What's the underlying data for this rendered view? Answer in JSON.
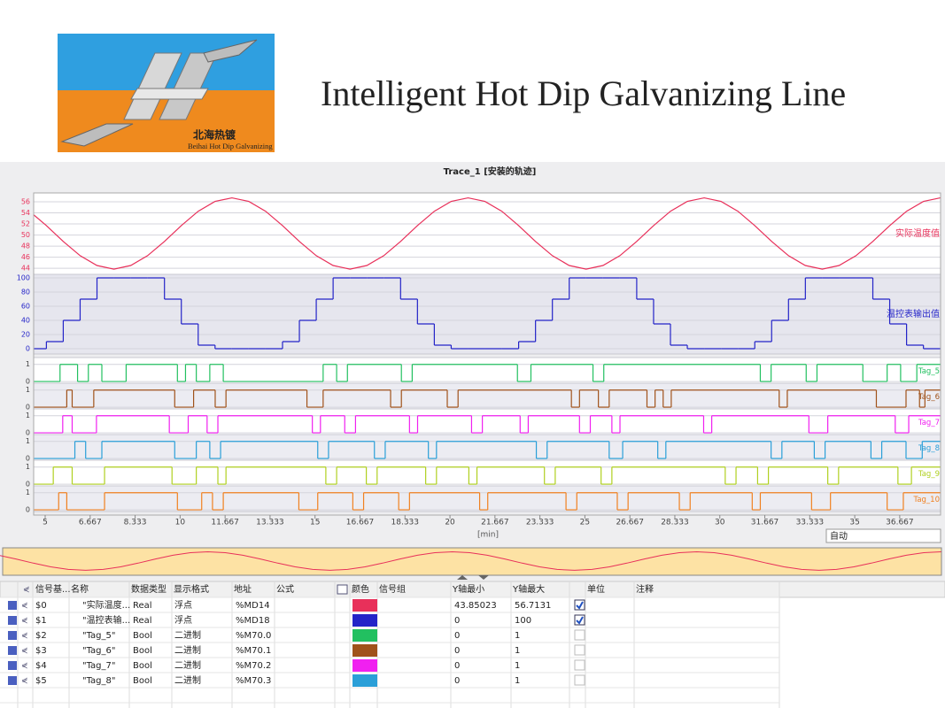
{
  "header": {
    "title": "Intelligent Hot Dip Galvanizing Line",
    "logo_cn": "北海热镀",
    "logo_en": "Beihai Hot Dip Galvanizing"
  },
  "chart_data": {
    "type": "line",
    "title": "Trace_1 [安装的轨迹]",
    "x_label": "[min]",
    "xlim": [
      4.573,
      38.18
    ],
    "xticks": [
      5,
      6.667,
      8.333,
      10,
      11.667,
      13.333,
      15,
      16.667,
      18.333,
      20,
      21.667,
      23.333,
      25,
      26.667,
      28.333,
      30,
      31.667,
      33.333,
      35,
      36.667
    ],
    "x": [
      4.42,
      5.045,
      5.67,
      6.295,
      6.92,
      7.545,
      8.17,
      8.795,
      9.42,
      10.045,
      10.67,
      11.295,
      11.92,
      12.545,
      13.17,
      13.795,
      14.42,
      15.045,
      15.67,
      16.295,
      16.92,
      17.545,
      18.17,
      18.795,
      19.42,
      20.045,
      20.67,
      21.295,
      21.92,
      22.545,
      23.17,
      23.795,
      24.42,
      25.045,
      25.67,
      26.295,
      26.92,
      27.545,
      28.17,
      28.795,
      29.42,
      30.045,
      30.67,
      31.295,
      31.92,
      32.545,
      33.17,
      33.795,
      34.42,
      35.045,
      35.67,
      36.295,
      36.92,
      37.545,
      38.17
    ],
    "series": [
      {
        "name": "实际温度值",
        "color": "#e8305a",
        "step": false,
        "ylim": [
          42.9,
          57.6
        ],
        "yticks": [
          44,
          46,
          48,
          50,
          52,
          54,
          56
        ],
        "values": [
          54.29,
          51.71,
          48.85,
          46.27,
          44.49,
          43.85,
          44.49,
          46.27,
          48.85,
          51.71,
          54.29,
          56.07,
          56.71,
          56.07,
          54.29,
          51.71,
          48.85,
          46.27,
          44.49,
          43.85,
          44.49,
          46.27,
          48.85,
          51.71,
          54.29,
          56.07,
          56.71,
          56.07,
          54.29,
          51.71,
          48.85,
          46.27,
          44.49,
          43.85,
          44.49,
          46.27,
          48.85,
          51.71,
          54.29,
          56.07,
          56.71,
          56.07,
          54.29,
          51.71,
          48.85,
          46.27,
          44.49,
          43.85,
          44.49,
          46.27,
          48.85,
          51.71,
          54.29,
          56.07,
          56.71
        ]
      },
      {
        "name": "温控表输出值",
        "color": "#2424c8",
        "step": true,
        "ylim": [
          -7.5,
          105
        ],
        "yticks": [
          0,
          20,
          40,
          60,
          80,
          100
        ],
        "values": [
          0,
          10,
          40,
          70,
          100,
          100,
          100,
          100,
          70,
          35,
          5,
          0,
          0,
          0,
          0,
          10,
          40,
          70,
          100,
          100,
          100,
          100,
          70,
          35,
          5,
          0,
          0,
          0,
          0,
          10,
          40,
          70,
          100,
          100,
          100,
          100,
          70,
          35,
          5,
          0,
          0,
          0,
          0,
          10,
          40,
          70,
          100,
          100,
          100,
          100,
          70,
          35,
          5,
          0,
          0
        ]
      },
      {
        "name": "Tag_5",
        "color": "#22c060",
        "step": true,
        "ylim": [
          -0.1,
          1.4
        ],
        "yticks": [
          0,
          1
        ],
        "x": [
          4.4,
          5.55,
          6.2,
          6.6,
          7.1,
          8.0,
          9.9,
          10.2,
          10.6,
          11.1,
          11.6,
          15.3,
          15.8,
          16.2,
          18.2,
          18.6,
          22.5,
          23.0,
          25.3,
          25.7,
          31.5,
          31.9,
          33.2,
          33.6,
          35.3,
          36.2,
          36.7,
          37.3
        ],
        "values": [
          0,
          1,
          0,
          1,
          0,
          1,
          0,
          1,
          0,
          1,
          0,
          1,
          0,
          1,
          0,
          1,
          0,
          1,
          0,
          1,
          0,
          1,
          0,
          1,
          0,
          1,
          0,
          1
        ]
      },
      {
        "name": "Tag_6",
        "color": "#a0521a",
        "step": true,
        "ylim": [
          -0.1,
          1.4
        ],
        "yticks": [
          0,
          1
        ],
        "x": [
          4.4,
          5.8,
          6.0,
          6.8,
          9.8,
          10.5,
          11.3,
          11.7,
          14.7,
          15.3,
          17.8,
          18.2,
          19.9,
          20.3,
          24.5,
          24.8,
          25.5,
          25.9,
          27.3,
          27.6,
          27.9,
          28.2,
          32.2,
          32.5,
          35.8,
          36.9,
          37.4,
          37.6
        ],
        "values": [
          0,
          1,
          0,
          1,
          0,
          1,
          0,
          1,
          0,
          1,
          0,
          1,
          0,
          1,
          0,
          1,
          0,
          1,
          0,
          1,
          0,
          1,
          0,
          1,
          0,
          1,
          0,
          1
        ]
      },
      {
        "name": "Tag_7",
        "color": "#f020f0",
        "step": true,
        "ylim": [
          -0.1,
          1.4
        ],
        "yticks": [
          0,
          1
        ],
        "x": [
          4.4,
          5.65,
          6.0,
          6.9,
          9.6,
          10.3,
          11.0,
          11.4,
          14.9,
          15.2,
          16.1,
          16.5,
          18.5,
          18.8,
          20.8,
          21.2,
          22.6,
          22.9,
          24.8,
          25.2,
          26.0,
          26.3,
          29.4,
          29.7,
          33.3,
          34.0,
          36.5,
          37.0
        ],
        "values": [
          0,
          1,
          0,
          1,
          0,
          1,
          0,
          1,
          0,
          1,
          0,
          1,
          0,
          1,
          0,
          1,
          0,
          1,
          0,
          1,
          0,
          1,
          0,
          1,
          0,
          1,
          0,
          1
        ]
      },
      {
        "name": "Tag_8",
        "color": "#2a9fd8",
        "step": true,
        "ylim": [
          -0.1,
          1.4
        ],
        "yticks": [
          0,
          1
        ],
        "x": [
          4.4,
          6.1,
          6.5,
          7.1,
          9.8,
          10.6,
          11.1,
          11.5,
          15.1,
          15.5,
          17.2,
          17.6,
          19.2,
          19.5,
          23.2,
          23.6,
          25.9,
          26.4,
          27.7,
          28.0,
          31.9,
          32.3,
          33.5,
          33.9,
          35.6,
          36.0,
          36.9,
          37.5
        ],
        "values": [
          0,
          1,
          0,
          1,
          0,
          1,
          0,
          1,
          0,
          1,
          0,
          1,
          0,
          1,
          0,
          1,
          0,
          1,
          0,
          1,
          0,
          1,
          0,
          1,
          0,
          1,
          0,
          1
        ]
      },
      {
        "name": "Tag_9",
        "color": "#b0d020",
        "step": true,
        "ylim": [
          -0.1,
          1.4
        ],
        "yticks": [
          0,
          1
        ],
        "x": [
          4.4,
          5.3,
          6.0,
          7.2,
          9.7,
          10.6,
          11.4,
          11.7,
          15.4,
          15.8,
          16.9,
          17.3,
          19.1,
          19.5,
          20.7,
          21.0,
          23.5,
          23.9,
          25.6,
          26.0,
          30.2,
          30.6,
          31.4,
          31.8,
          34.0,
          34.4,
          36.6,
          37.1
        ],
        "values": [
          0,
          1,
          0,
          1,
          0,
          1,
          0,
          1,
          0,
          1,
          0,
          1,
          0,
          1,
          0,
          1,
          0,
          1,
          0,
          1,
          0,
          1,
          0,
          1,
          0,
          1,
          0,
          1
        ]
      },
      {
        "name": "Tag_10",
        "color": "#f08020",
        "step": true,
        "ylim": [
          -0.1,
          1.4
        ],
        "yticks": [
          0,
          1
        ],
        "x": [
          4.4,
          5.5,
          5.8,
          7.2,
          9.9,
          10.8,
          11.2,
          11.6,
          14.4,
          15.1,
          16.4,
          16.8,
          18.1,
          18.5,
          21.1,
          21.4,
          24.3,
          24.7,
          26.2,
          26.6,
          28.5,
          28.9,
          31.2,
          31.5,
          33.4,
          34.1,
          36.2,
          36.8
        ],
        "values": [
          0,
          1,
          0,
          1,
          0,
          1,
          0,
          1,
          0,
          1,
          0,
          1,
          0,
          1,
          0,
          1,
          0,
          1,
          0,
          1,
          0,
          1,
          0,
          1,
          0,
          1,
          0,
          1
        ]
      }
    ],
    "time_mode": "自动"
  },
  "table": {
    "columns": [
      "信号基...",
      "名称",
      "数据类型",
      "显示格式",
      "地址",
      "公式",
      "颜色",
      "信号组",
      "Y轴最小",
      "Y轴最大",
      "单位",
      "注释"
    ],
    "rows": [
      {
        "signal": "$0",
        "name": "\"实际温度...",
        "data_type": "Real",
        "format": "浮点",
        "address": "%MD14",
        "y_min": 43.85023,
        "y_max": 56.7131,
        "y_scale": true
      },
      {
        "signal": "$1",
        "name": "\"温控表输...",
        "data_type": "Real",
        "format": "浮点",
        "address": "%MD18",
        "y_min": 0,
        "y_max": 100,
        "y_scale": true
      },
      {
        "signal": "$2",
        "name": "\"Tag_5\"",
        "data_type": "Bool",
        "format": "二进制",
        "address": "%M70.0",
        "y_min": 0,
        "y_max": 1,
        "y_scale": false
      },
      {
        "signal": "$3",
        "name": "\"Tag_6\"",
        "data_type": "Bool",
        "format": "二进制",
        "address": "%M70.1",
        "y_min": 0,
        "y_max": 1,
        "y_scale": false
      },
      {
        "signal": "$4",
        "name": "\"Tag_7\"",
        "data_type": "Bool",
        "format": "二进制",
        "address": "%M70.2",
        "y_min": 0,
        "y_max": 1,
        "y_scale": false
      },
      {
        "signal": "$5",
        "name": "\"Tag_8\"",
        "data_type": "Bool",
        "format": "二进制",
        "address": "%M70.3",
        "y_min": 0,
        "y_max": 1,
        "y_scale": false
      }
    ]
  }
}
